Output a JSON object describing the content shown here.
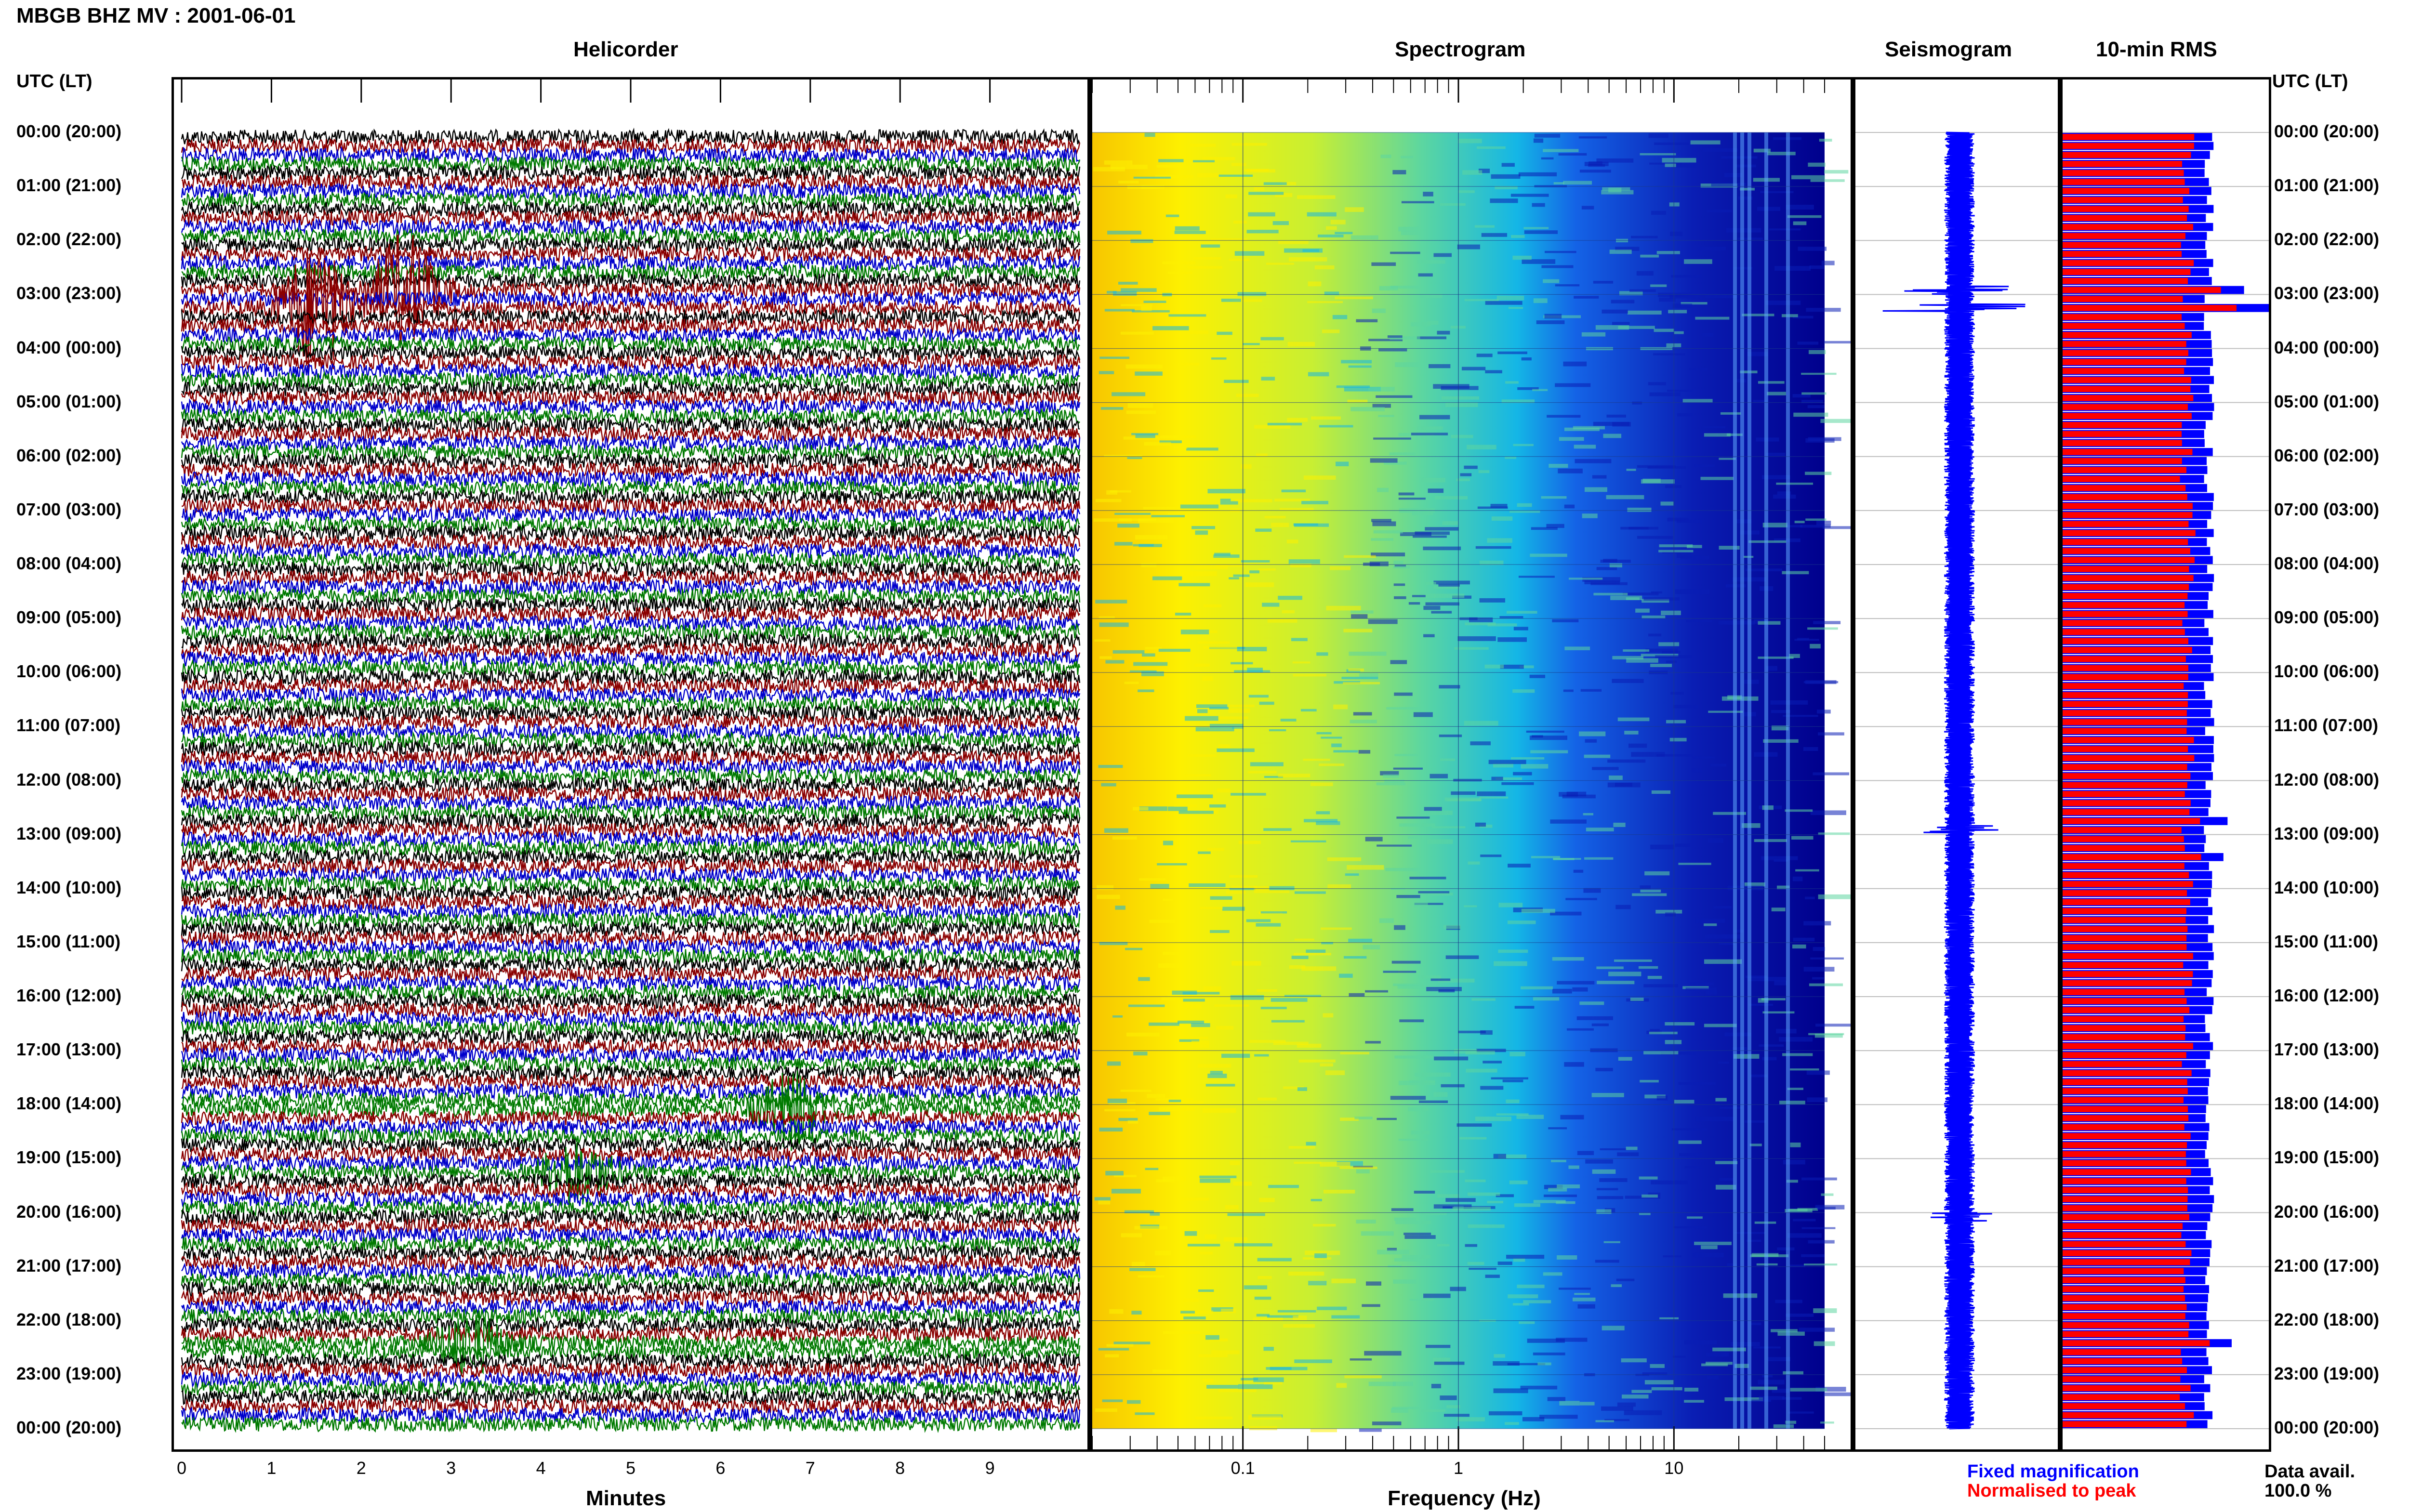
{
  "header": {
    "station_title": "MBGB BHZ MV : 2001-06-01"
  },
  "panels": {
    "helicorder": "Helicorder",
    "spectrogram": "Spectrogram",
    "seismogram": "Seismogram",
    "rms": "10-min RMS"
  },
  "axis": {
    "time_label_left": "UTC (LT)",
    "time_label_right": "UTC (LT)",
    "minutes_label": "Minutes",
    "frequency_label": "Frequency (Hz)"
  },
  "time_ticks": [
    "00:00 (20:00)",
    "01:00 (21:00)",
    "02:00 (22:00)",
    "03:00 (23:00)",
    "04:00 (00:00)",
    "05:00 (01:00)",
    "06:00 (02:00)",
    "07:00 (03:00)",
    "08:00 (04:00)",
    "09:00 (05:00)",
    "10:00 (06:00)",
    "11:00 (07:00)",
    "12:00 (08:00)",
    "13:00 (09:00)",
    "14:00 (10:00)",
    "15:00 (11:00)",
    "16:00 (12:00)",
    "17:00 (13:00)",
    "18:00 (14:00)",
    "19:00 (15:00)",
    "20:00 (16:00)",
    "21:00 (17:00)",
    "22:00 (18:00)",
    "23:00 (19:00)",
    "00:00 (20:00)"
  ],
  "legend": {
    "fixed": "Fixed magnification",
    "normalised": "Normalised to peak",
    "avail_label": "Data avail.",
    "avail_value": "100.0 %"
  },
  "colors": {
    "trace_cycle": [
      "#000000",
      "#8b0000",
      "#0000cc",
      "#007a00"
    ],
    "fixed": "#0000ff",
    "normalised": "#ff0000",
    "spectro_ramp": [
      "#f7c600",
      "#fdf000",
      "#c8ef32",
      "#5cd6a0",
      "#14b6e6",
      "#1463e6",
      "#0a1eb4",
      "#00008c"
    ]
  },
  "chart_data": [
    {
      "type": "line",
      "name_panel": "helicorder",
      "x_unit": "Minutes",
      "xlim": [
        0,
        10
      ],
      "x_ticks": [
        0,
        1,
        2,
        3,
        4,
        5,
        6,
        7,
        8,
        9
      ],
      "rows": 144,
      "row_minutes": 10,
      "events": [
        {
          "row": 17,
          "minute": 2.5,
          "amp": 3.0,
          "color": "#8b0000"
        },
        {
          "row": 19,
          "minute": 1.5,
          "amp": 3.5,
          "color": "#8b0000"
        },
        {
          "row": 108,
          "minute": 6.8,
          "amp": 2.0,
          "color": "#007a00"
        },
        {
          "row": 115,
          "minute": 4.4,
          "amp": 1.8,
          "color": "#007a00"
        },
        {
          "row": 134,
          "minute": 3.2,
          "amp": 1.6,
          "color": "#007a00"
        }
      ]
    },
    {
      "type": "heatmap",
      "name_panel": "spectrogram",
      "x_unit": "Frequency (Hz)",
      "x_scale": "log",
      "xlim": [
        0.02,
        50
      ],
      "x_ticks": [
        0.1,
        1,
        10
      ]
    },
    {
      "type": "line",
      "name_panel": "seismogram",
      "spikes": [
        {
          "row": 17,
          "amp": 1.0
        },
        {
          "row": 19,
          "amp": 1.8
        },
        {
          "row": 77,
          "amp": 0.6
        },
        {
          "row": 120,
          "amp": 0.5
        }
      ]
    },
    {
      "type": "bar",
      "name_panel": "rms",
      "bins": 144,
      "base_level": 0.7,
      "spikes": [
        {
          "row": 17,
          "value": 0.88
        },
        {
          "row": 19,
          "value": 1.0
        },
        {
          "row": 76,
          "value": 0.8
        },
        {
          "row": 80,
          "value": 0.78
        },
        {
          "row": 134,
          "value": 0.82
        }
      ]
    }
  ]
}
